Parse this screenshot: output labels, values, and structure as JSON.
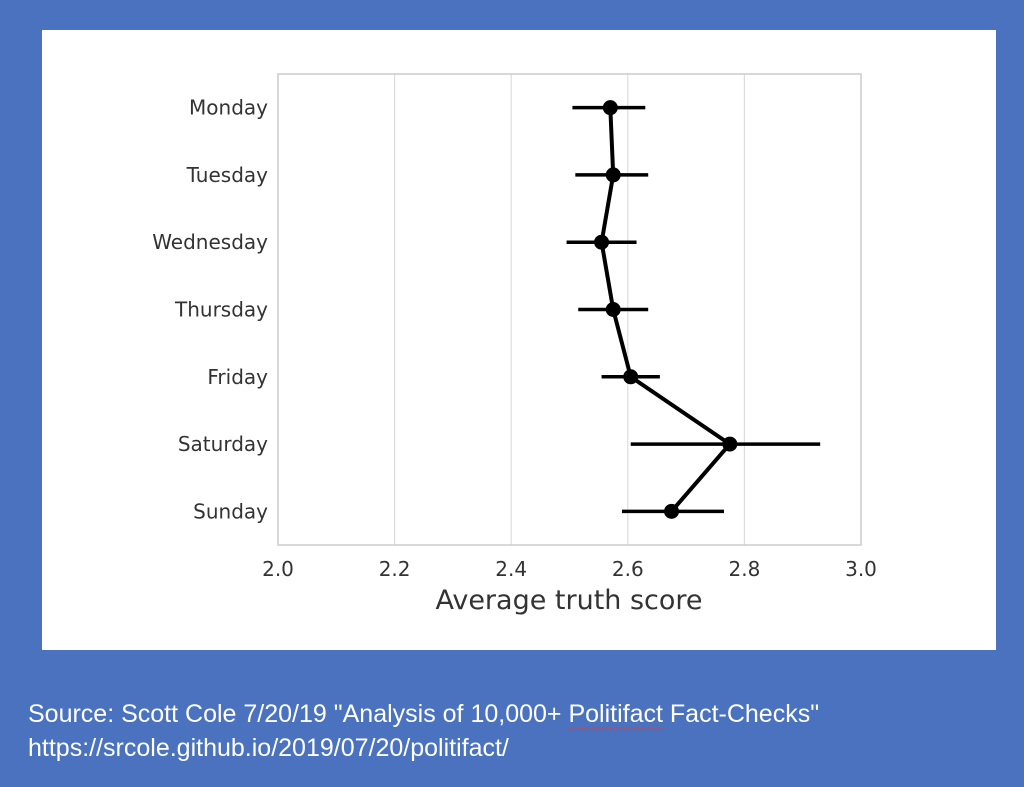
{
  "chart_data": {
    "type": "point",
    "orientation": "horizontal",
    "categories": [
      "Monday",
      "Tuesday",
      "Wednesday",
      "Thursday",
      "Friday",
      "Saturday",
      "Sunday"
    ],
    "values": [
      2.57,
      2.575,
      2.555,
      2.575,
      2.605,
      2.775,
      2.675
    ],
    "ci_low": [
      2.505,
      2.51,
      2.495,
      2.515,
      2.555,
      2.605,
      2.59
    ],
    "ci_high": [
      2.63,
      2.635,
      2.615,
      2.635,
      2.655,
      2.93,
      2.765
    ],
    "xlabel": "Average truth score",
    "ylabel": "",
    "xlim": [
      2.0,
      3.0
    ],
    "xticks": [
      2.0,
      2.2,
      2.4,
      2.6,
      2.8,
      3.0
    ],
    "xtick_labels": [
      "2.0",
      "2.2",
      "2.4",
      "2.6",
      "2.8",
      "3.0"
    ],
    "grid": true,
    "colors": {
      "marks": "#000000",
      "grid": "#dddddd",
      "frame": "#cccccc",
      "text": "#333333"
    }
  },
  "caption": {
    "line1_before": "Source: Scott Cole 7/20/19 \"Analysis of 10,000+ ",
    "line1_squiggle": "Politifact",
    "line1_after": " Fact-Checks\"",
    "line2": "https://srcole.github.io/2019/07/20/politifact/"
  },
  "colors": {
    "background": "#4a72be",
    "panel": "#ffffff",
    "caption_text": "#ffffff"
  }
}
